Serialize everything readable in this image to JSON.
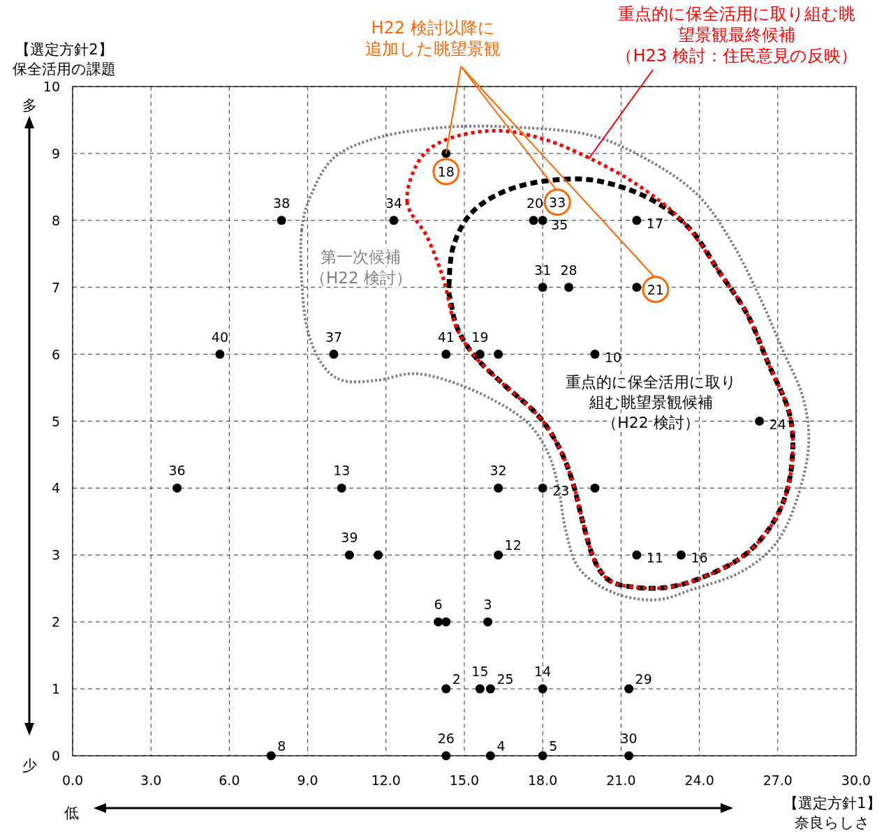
{
  "chart_data": {
    "type": "scatter",
    "xlabel": "【選定方針1】奈良らしさ",
    "ylabel": "【選定方針2】保全活用の課題",
    "x": [
      8.0,
      12.3,
      14.3,
      17.65,
      18.0,
      21.6,
      18.0,
      19.0,
      21.6,
      5.64,
      10.0,
      14.3,
      15.6,
      16.3,
      20.0,
      26.3,
      4.0,
      10.3,
      16.3,
      18.0,
      20.0,
      10.6,
      11.7,
      16.3,
      21.6,
      23.3,
      14.0,
      14.3,
      15.9,
      14.3,
      15.6,
      16.0,
      18.0,
      21.3,
      7.6,
      14.3,
      16.0,
      18.0,
      21.3
    ],
    "values": [
      8,
      8,
      9,
      8,
      8,
      8,
      7,
      7,
      7,
      6,
      6,
      6,
      6,
      6,
      6,
      5,
      4,
      4,
      4,
      4,
      4,
      3,
      3,
      3,
      3,
      3,
      2,
      2,
      2,
      1,
      1,
      1,
      1,
      1,
      0,
      0,
      0,
      0,
      0
    ],
    "color": "#000000",
    "marker": "circle",
    "xlim": [
      0,
      30
    ],
    "ylim": [
      0,
      10
    ],
    "xticks": [
      {
        "value": 0,
        "label": "0.0"
      },
      {
        "value": 3,
        "label": "3.0"
      },
      {
        "value": 6,
        "label": "6.0"
      },
      {
        "value": 9,
        "label": "9.0"
      },
      {
        "value": 12,
        "label": "12.0"
      },
      {
        "value": 15,
        "label": "15.0"
      },
      {
        "value": 18,
        "label": "18.0"
      },
      {
        "value": 21,
        "label": "21.0"
      },
      {
        "value": 24,
        "label": "24.0"
      },
      {
        "value": 27,
        "label": "27.0"
      },
      {
        "value": 30,
        "label": "30.0"
      }
    ],
    "yticks": [
      0,
      1,
      2,
      3,
      4,
      5,
      6,
      7,
      8,
      9,
      10
    ],
    "grid": true,
    "annotations": [
      {
        "text": "H22 検討以降に追加した眺望景観",
        "x": 14.3,
        "y": 9
      },
      "重点的に保全活用に取り組む眺望景観最終候補（H23 検討：住民意見の反映）",
      "第一次候補（H22 検討）",
      "重点的に保全活用に取り組む眺望景観候補（H22 検討）",
      "多",
      "少",
      "低",
      {
        "text": "18",
        "x": 14.3,
        "y": 9
      },
      {
        "text": "33",
        "x": 18.0,
        "y": 8
      },
      {
        "text": "21",
        "x": 21.6,
        "y": 7
      },
      {
        "text": "38",
        "x": 8.0,
        "y": 8
      },
      {
        "text": "34",
        "x": 12.3,
        "y": 8
      },
      {
        "text": "20",
        "x": 17.65,
        "y": 8
      },
      {
        "text": "35",
        "x": 18.0,
        "y": 8
      },
      {
        "text": "17",
        "x": 21.6,
        "y": 8
      },
      {
        "text": "31",
        "x": 18.0,
        "y": 7
      },
      {
        "text": "28",
        "x": 19.0,
        "y": 7
      },
      {
        "text": "40",
        "x": 5.64,
        "y": 6
      },
      {
        "text": "37",
        "x": 10.0,
        "y": 6
      },
      {
        "text": "41",
        "x": 14.3,
        "y": 6
      },
      {
        "text": "19",
        "x": 15.6,
        "y": 6
      },
      {
        "text": "10",
        "x": 20.0,
        "y": 6
      },
      {
        "text": "24",
        "x": 26.3,
        "y": 5
      },
      {
        "text": "36",
        "x": 4.0,
        "y": 4
      },
      {
        "text": "13",
        "x": 10.3,
        "y": 4
      },
      {
        "text": "32",
        "x": 16.3,
        "y": 4
      },
      {
        "text": "23",
        "x": 18.0,
        "y": 4
      },
      {
        "text": "39",
        "x": 10.6,
        "y": 3
      },
      {
        "text": "12",
        "x": 16.3,
        "y": 3
      },
      {
        "text": "11",
        "x": 21.6,
        "y": 3
      },
      {
        "text": "16",
        "x": 23.3,
        "y": 3
      },
      {
        "text": "6",
        "x": 14.0,
        "y": 2
      },
      {
        "text": "3",
        "x": 15.9,
        "y": 2
      },
      {
        "text": "2",
        "x": 14.3,
        "y": 1
      },
      {
        "text": "15",
        "x": 15.6,
        "y": 1
      },
      {
        "text": "25",
        "x": 16.0,
        "y": 1
      },
      {
        "text": "14",
        "x": 18.0,
        "y": 1
      },
      {
        "text": "29",
        "x": 21.3,
        "y": 1
      },
      {
        "text": "8",
        "x": 7.6,
        "y": 0
      },
      {
        "text": "26",
        "x": 14.3,
        "y": 0
      },
      {
        "text": "4",
        "x": 16.0,
        "y": 0
      },
      {
        "text": "5",
        "x": 18.0,
        "y": 0
      },
      {
        "text": "30",
        "x": 21.3,
        "y": 0
      }
    ]
  }
}
